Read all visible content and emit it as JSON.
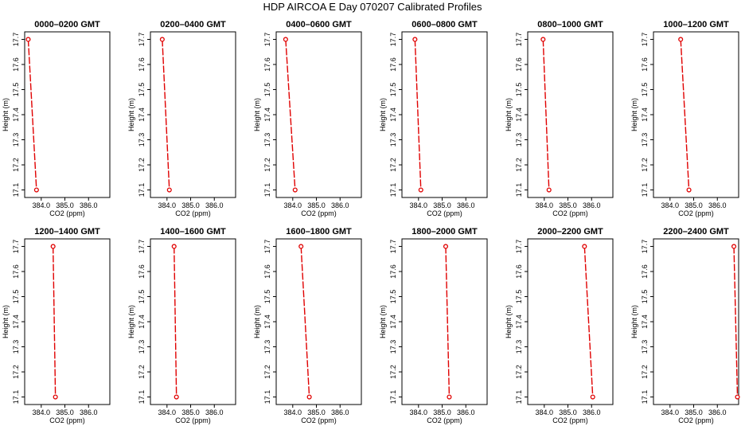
{
  "title": "HDP AIRCOA E  Day 070207  Calibrated Profiles",
  "chart_data": {
    "type": "line",
    "title": "HDP AIRCOA E  Day 070207  Calibrated Profiles",
    "xlabel": "CO2 (ppm)",
    "ylabel": "Height (m)",
    "xlim": [
      383.3,
      386.9
    ],
    "ylim": [
      17.07,
      17.73
    ],
    "x_ticks": [
      "384.0",
      "385.0",
      "386.0"
    ],
    "y_ticks": [
      "17.1",
      "17.2",
      "17.3",
      "17.4",
      "17.5",
      "17.6",
      "17.7"
    ],
    "line_color": "#e00000",
    "marker": "open-circle",
    "grid": false,
    "panels": [
      {
        "title": "0000–0200 GMT",
        "points": [
          {
            "x": 383.45,
            "y": 17.7
          },
          {
            "x": 383.8,
            "y": 17.1
          }
        ]
      },
      {
        "title": "0200–0400 GMT",
        "points": [
          {
            "x": 383.8,
            "y": 17.7
          },
          {
            "x": 384.1,
            "y": 17.1
          }
        ]
      },
      {
        "title": "0400–0600 GMT",
        "points": [
          {
            "x": 383.7,
            "y": 17.7
          },
          {
            "x": 384.1,
            "y": 17.1
          }
        ]
      },
      {
        "title": "0600–0800 GMT",
        "points": [
          {
            "x": 383.85,
            "y": 17.7
          },
          {
            "x": 384.1,
            "y": 17.1
          }
        ]
      },
      {
        "title": "0800–1000 GMT",
        "points": [
          {
            "x": 383.95,
            "y": 17.7
          },
          {
            "x": 384.2,
            "y": 17.1
          }
        ]
      },
      {
        "title": "1000–1200 GMT",
        "points": [
          {
            "x": 384.45,
            "y": 17.7
          },
          {
            "x": 384.8,
            "y": 17.1
          }
        ]
      },
      {
        "title": "1200–1400 GMT",
        "points": [
          {
            "x": 384.5,
            "y": 17.7
          },
          {
            "x": 384.6,
            "y": 17.1
          }
        ]
      },
      {
        "title": "1400–1600 GMT",
        "points": [
          {
            "x": 384.3,
            "y": 17.7
          },
          {
            "x": 384.4,
            "y": 17.1
          }
        ]
      },
      {
        "title": "1600–1800 GMT",
        "points": [
          {
            "x": 384.35,
            "y": 17.7
          },
          {
            "x": 384.7,
            "y": 17.1
          }
        ]
      },
      {
        "title": "1800–2000 GMT",
        "points": [
          {
            "x": 385.15,
            "y": 17.7
          },
          {
            "x": 385.3,
            "y": 17.1
          }
        ]
      },
      {
        "title": "2000–2200 GMT",
        "points": [
          {
            "x": 385.7,
            "y": 17.7
          },
          {
            "x": 386.05,
            "y": 17.1
          }
        ]
      },
      {
        "title": "2200–2400 GMT",
        "points": [
          {
            "x": 386.7,
            "y": 17.7
          },
          {
            "x": 386.85,
            "y": 17.1
          }
        ]
      }
    ]
  }
}
